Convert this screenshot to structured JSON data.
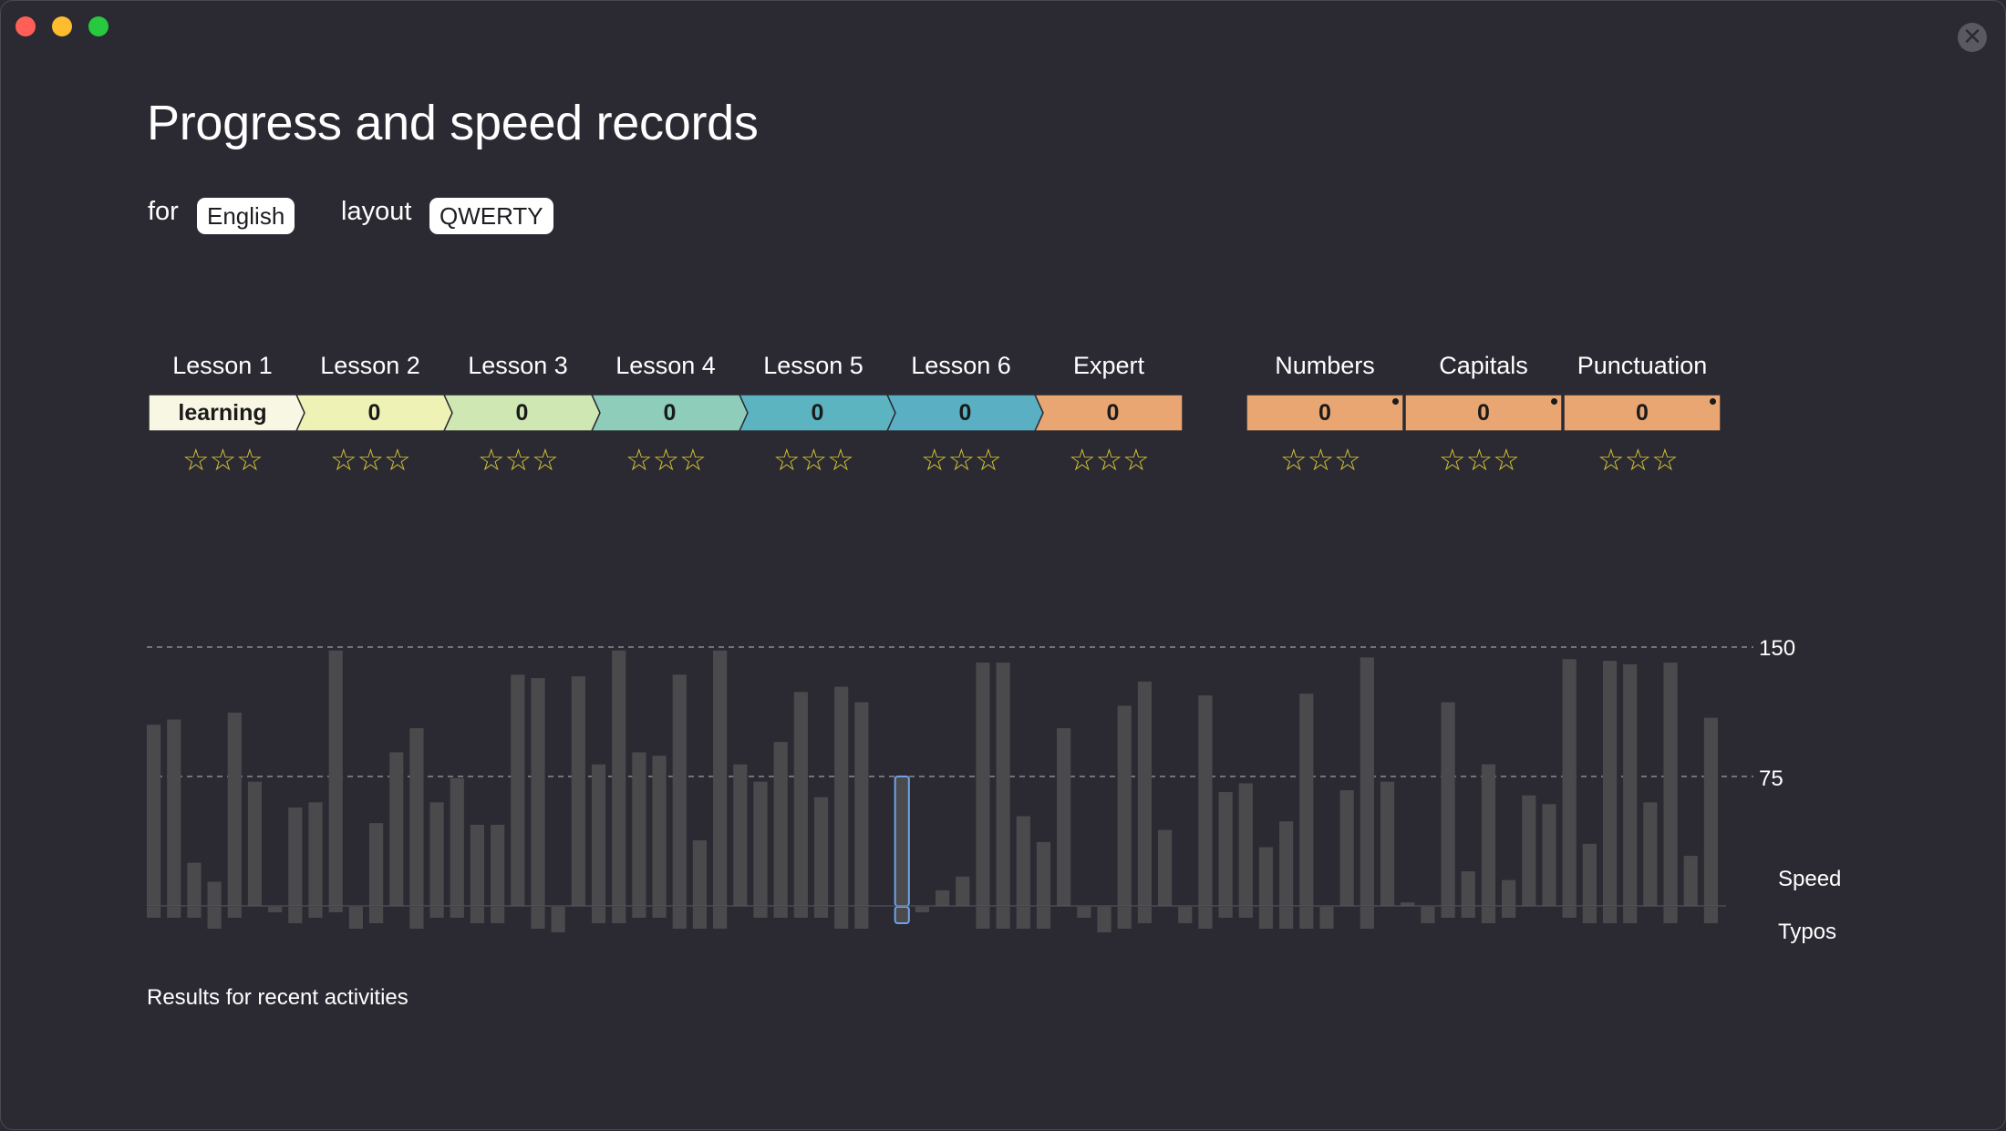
{
  "window": {
    "title": "Progress and speed records",
    "for_label": "for",
    "language": "English",
    "layout_label": "layout",
    "layout": "QWERTY",
    "close_glyph": "✕"
  },
  "lessons": [
    {
      "name": "Lesson 1",
      "value": "learning",
      "color": "#f7f7e4",
      "stars": "☆☆☆"
    },
    {
      "name": "Lesson 2",
      "value": "0",
      "color": "#eef3b5",
      "stars": "☆☆☆"
    },
    {
      "name": "Lesson 3",
      "value": "0",
      "color": "#cfe7b2",
      "stars": "☆☆☆"
    },
    {
      "name": "Lesson 4",
      "value": "0",
      "color": "#8ecdb9",
      "stars": "☆☆☆"
    },
    {
      "name": "Lesson 5",
      "value": "0",
      "color": "#5bb4c0",
      "stars": "☆☆☆"
    },
    {
      "name": "Lesson 6",
      "value": "0",
      "color": "#5aafc2",
      "stars": "☆☆☆"
    },
    {
      "name": "Expert",
      "value": "0",
      "color": "#e9a672",
      "stars": "☆☆☆"
    }
  ],
  "extras": [
    {
      "name": "Numbers",
      "value": "0",
      "color": "#e9a672",
      "stars": "☆☆☆"
    },
    {
      "name": "Capitals",
      "value": "0",
      "color": "#e9a672",
      "stars": "☆☆☆"
    },
    {
      "name": "Punctuation",
      "value": "0",
      "color": "#e9a672",
      "stars": "☆☆☆"
    }
  ],
  "chart_data": {
    "type": "bar",
    "title": "",
    "y_ticks": [
      150,
      75
    ],
    "speed_label": "Speed",
    "typos_label": "Typos",
    "speed_max": 150,
    "typos_max": 50,
    "bar_color": "#4a4a4c",
    "highlight_color": "#6fa3e6",
    "highlight_index": 37,
    "speed": [
      105,
      108,
      25,
      14,
      112,
      72,
      0,
      57,
      60,
      148,
      0,
      48,
      89,
      103,
      60,
      74,
      47,
      47,
      134,
      132,
      0,
      133,
      82,
      148,
      89,
      87,
      134,
      38,
      148,
      82,
      72,
      95,
      124,
      63,
      127,
      118,
      0,
      75,
      0,
      9,
      17,
      141,
      141,
      52,
      37,
      103,
      0,
      0,
      116,
      130,
      44,
      0,
      122,
      66,
      71,
      34,
      49,
      123,
      0,
      67,
      144,
      72,
      2,
      0,
      118,
      20,
      82,
      15,
      64,
      59,
      143,
      36,
      142,
      140,
      60,
      141,
      29,
      109
    ],
    "typos": [
      12,
      12,
      12,
      24,
      12,
      0,
      6,
      18,
      12,
      6,
      24,
      18,
      0,
      24,
      12,
      12,
      18,
      18,
      0,
      24,
      28,
      0,
      18,
      18,
      12,
      12,
      24,
      24,
      24,
      0,
      12,
      12,
      12,
      12,
      24,
      24,
      0,
      18,
      6,
      0,
      0,
      24,
      24,
      24,
      24,
      0,
      12,
      28,
      24,
      18,
      0,
      18,
      24,
      12,
      12,
      24,
      24,
      24,
      24,
      0,
      24,
      0,
      0,
      18,
      12,
      12,
      18,
      12,
      0,
      0,
      12,
      18,
      18,
      18,
      0,
      18,
      0,
      18
    ]
  },
  "footer": "Results for recent activities"
}
